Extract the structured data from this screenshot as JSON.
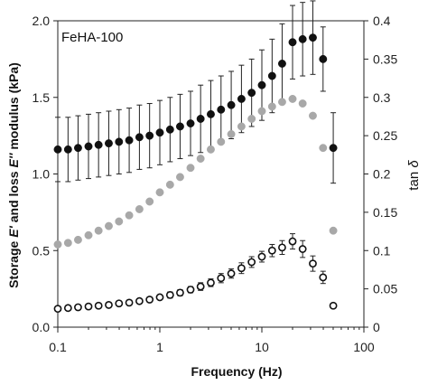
{
  "chart_data": {
    "type": "scatter",
    "annotation": "FeHA-100",
    "xlabel": "Frequency (Hz)",
    "ylabel_parts": [
      "Storage ",
      "E'",
      " and loss ",
      "E''",
      " modulus (kPa)"
    ],
    "y2label_parts": [
      "tan ",
      "δ"
    ],
    "x_scale": "log",
    "xlim": [
      0.1,
      100
    ],
    "ylim": [
      0,
      2.0
    ],
    "y2lim": [
      0,
      0.4
    ],
    "x_ticks": [
      0.1,
      1,
      10,
      100
    ],
    "x_tick_labels": [
      "0.1",
      "1",
      "10",
      "100"
    ],
    "y_ticks": [
      0,
      0.5,
      1.0,
      1.5,
      2.0
    ],
    "y_tick_labels": [
      "0.0",
      "0.5",
      "1.0",
      "1.5",
      "2.0"
    ],
    "y2_ticks": [
      0,
      0.05,
      0.1,
      0.15,
      0.2,
      0.25,
      0.3,
      0.35,
      0.4
    ],
    "y2_tick_labels": [
      "0",
      "0.05",
      "0.1",
      "0.15",
      "0.2",
      "0.25",
      "0.3",
      "0.35",
      "0.4"
    ],
    "grid": false,
    "legend": "none",
    "x": [
      0.1,
      0.126,
      0.158,
      0.2,
      0.251,
      0.316,
      0.398,
      0.501,
      0.631,
      0.794,
      1.0,
      1.26,
      1.58,
      2.0,
      2.51,
      3.16,
      3.98,
      5.01,
      6.31,
      7.94,
      10.0,
      12.6,
      15.8,
      20.0,
      25.1,
      31.6,
      39.8,
      50.1
    ],
    "series": [
      {
        "axis": "left",
        "marker": "filled",
        "color": "#111111",
        "values": [
          1.16,
          1.16,
          1.17,
          1.18,
          1.19,
          1.2,
          1.21,
          1.22,
          1.24,
          1.25,
          1.27,
          1.29,
          1.31,
          1.33,
          1.36,
          1.39,
          1.42,
          1.45,
          1.49,
          1.53,
          1.58,
          1.64,
          1.72,
          1.86,
          1.88,
          1.89,
          1.75,
          1.17
        ],
        "errors": [
          0.21,
          0.21,
          0.21,
          0.21,
          0.21,
          0.21,
          0.21,
          0.21,
          0.21,
          0.21,
          0.21,
          0.21,
          0.21,
          0.21,
          0.22,
          0.22,
          0.22,
          0.22,
          0.22,
          0.22,
          0.23,
          0.24,
          0.26,
          0.24,
          0.24,
          0.24,
          0.21,
          0.23
        ]
      },
      {
        "axis": "left",
        "marker": "filled",
        "color": "#a8a8a8",
        "values": [
          0.54,
          0.55,
          0.57,
          0.6,
          0.63,
          0.66,
          0.69,
          0.73,
          0.77,
          0.82,
          0.88,
          0.93,
          0.98,
          1.04,
          1.1,
          1.16,
          1.21,
          1.26,
          1.31,
          1.36,
          1.41,
          1.44,
          1.47,
          1.49,
          1.46,
          1.38,
          1.17,
          0.63
        ]
      },
      {
        "axis": "right",
        "marker": "open",
        "color": "#111111",
        "values": [
          0.024,
          0.025,
          0.026,
          0.027,
          0.028,
          0.029,
          0.031,
          0.032,
          0.034,
          0.036,
          0.039,
          0.042,
          0.045,
          0.049,
          0.053,
          0.058,
          0.064,
          0.07,
          0.077,
          0.085,
          0.092,
          0.1,
          0.104,
          0.112,
          0.102,
          0.083,
          0.065,
          0.028
        ],
        "errors": [
          0.003,
          0.003,
          0.003,
          0.003,
          0.003,
          0.003,
          0.003,
          0.003,
          0.003,
          0.003,
          0.003,
          0.004,
          0.004,
          0.004,
          0.005,
          0.005,
          0.006,
          0.006,
          0.007,
          0.007,
          0.007,
          0.008,
          0.009,
          0.01,
          0.011,
          0.01,
          0.008,
          0.003
        ]
      }
    ]
  }
}
